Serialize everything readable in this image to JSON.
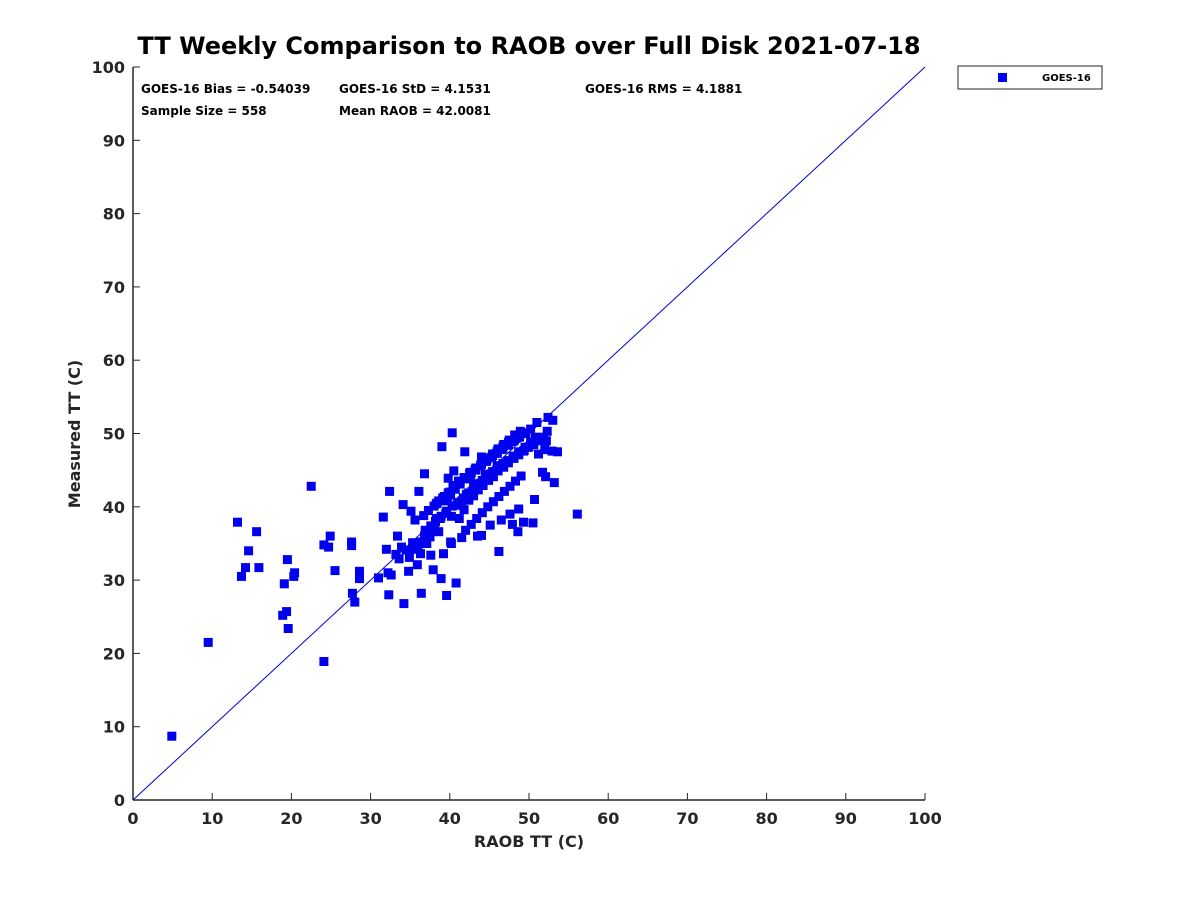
{
  "chart_data": {
    "type": "scatter",
    "title": "TT Weekly Comparison to RAOB over Full Disk 2021-07-18",
    "xlabel": "RAOB TT (C)",
    "ylabel": "Measured TT (C)",
    "xlim": [
      0,
      100
    ],
    "ylim": [
      0,
      100
    ],
    "xticks": [
      "0",
      "10",
      "20",
      "30",
      "40",
      "50",
      "60",
      "70",
      "80",
      "90",
      "100"
    ],
    "yticks": [
      "0",
      "10",
      "20",
      "30",
      "40",
      "50",
      "60",
      "70",
      "80",
      "90",
      "100"
    ],
    "grid": false,
    "legend_position": "top-right",
    "reference_line": {
      "from": [
        0,
        0
      ],
      "to": [
        100,
        100
      ],
      "color": "#0000cc"
    },
    "stats": {
      "bias": "GOES-16 Bias = -0.54039",
      "std": "GOES-16 StD = 4.1531",
      "rms": "GOES-16 RMS = 4.1881",
      "sample": "Sample Size = 558",
      "mean": "Mean RAOB = 42.0081"
    },
    "series": [
      {
        "name": "GOES-16",
        "color": "#0000ee",
        "marker": "square",
        "x": [
          4.9,
          9.5,
          13.2,
          13.7,
          14.2,
          14.6,
          15.6,
          15.9,
          18.9,
          19.1,
          19.4,
          19.6,
          19.5,
          20.3,
          20.4,
          22.5,
          24.1,
          24.1,
          24.7,
          24.9,
          25.5,
          27.6,
          27.6,
          27.7,
          28.0,
          28.6,
          28.6,
          31.0,
          31.6,
          32.0,
          32.2,
          32.3,
          32.4,
          32.6,
          33.2,
          33.4,
          33.6,
          33.9,
          34.1,
          34.2,
          34.5,
          34.8,
          35.1,
          35.3,
          35.6,
          35.9,
          36.1,
          36.4,
          36.8,
          37.1,
          37.4,
          37.9,
          38.3,
          38.6,
          38.9,
          39.2,
          39.6,
          40.1,
          40.3,
          40.8,
          36.0,
          36.4,
          36.9,
          37.5,
          38.1,
          38.8,
          39.5,
          40.2,
          40.9,
          41.5,
          42.1,
          42.8,
          43.5,
          44.1,
          44.8,
          45.4,
          46.1,
          46.7,
          47.4,
          48.0,
          48.7,
          49.3,
          49.9,
          50.6,
          51.2,
          51.8,
          52.3,
          52.9,
          53.6,
          56.1,
          41.2,
          41.8,
          42.4,
          43.0,
          43.6,
          44.2,
          44.9,
          45.5,
          46.1,
          46.8,
          47.4,
          48.1,
          48.7,
          49.4,
          50.0,
          50.8,
          39.7,
          40.1,
          40.7,
          41.3,
          42.0,
          42.6,
          43.3,
          43.9,
          44.6,
          45.2,
          45.9,
          46.5,
          47.2,
          47.8,
          48.5,
          49.1,
          37.6,
          38.2,
          38.9,
          39.6,
          40.3,
          41.0,
          41.7,
          42.4,
          43.1,
          43.8,
          44.5,
          45.2,
          45.9,
          46.6,
          47.3,
          48.0,
          48.7,
          49.5,
          50.2,
          51.0,
          38.4,
          39.1,
          39.8,
          40.5,
          41.2,
          41.9,
          42.6,
          43.3,
          44.0,
          44.7,
          45.4,
          46.1,
          46.8,
          47.5,
          48.2,
          48.9,
          49.6,
          42.0,
          42.7,
          43.4,
          44.1,
          44.8,
          45.5,
          46.2,
          46.9,
          47.6,
          48.3,
          49.0,
          36.7,
          37.3,
          38.0,
          38.6,
          39.3,
          40.0,
          40.6,
          41.3,
          42.0,
          42.7,
          43.3,
          44.0,
          44.7,
          45.4,
          46.0,
          46.7,
          47.4,
          40.4,
          41.1,
          41.8,
          42.5,
          43.2,
          43.9,
          44.6,
          45.3,
          46.0,
          46.7,
          47.4,
          48.1,
          48.8,
          49.5,
          50.2,
          40.2,
          41.5,
          44.0,
          45.1,
          46.5,
          47.6,
          48.7,
          52.4,
          53.0,
          51.7,
          50.7,
          52.1,
          41.9,
          39.0,
          36.8,
          43.5,
          46.2,
          47.9,
          48.6,
          49.3,
          52.2,
          53.2,
          50.5,
          51.2,
          52.0,
          40.5,
          39.8,
          43.0,
          44.5,
          46.0,
          44.0,
          42.4,
          38.3,
          37.6,
          36.3,
          35.5,
          34.9
        ],
        "y": [
          8.7,
          21.5,
          37.9,
          30.5,
          31.7,
          34.0,
          36.6,
          31.7,
          25.2,
          29.5,
          25.7,
          23.4,
          32.8,
          30.5,
          31.0,
          42.8,
          18.9,
          34.8,
          34.5,
          36.0,
          31.3,
          35.2,
          34.7,
          28.2,
          27.0,
          30.2,
          31.2,
          30.3,
          38.6,
          34.2,
          31.0,
          28.0,
          42.1,
          30.7,
          33.5,
          36.0,
          32.9,
          34.5,
          40.3,
          26.8,
          34.1,
          31.2,
          39.4,
          35.1,
          38.2,
          32.1,
          42.1,
          28.2,
          36.0,
          35.0,
          36.2,
          31.4,
          38.4,
          36.6,
          30.2,
          33.6,
          27.9,
          35.2,
          50.1,
          29.6,
          34.5,
          35.2,
          36.8,
          35.9,
          37.0,
          38.4,
          39.1,
          38.7,
          40.2,
          40.8,
          41.7,
          42.1,
          43.0,
          43.6,
          44.2,
          44.8,
          45.3,
          45.9,
          46.3,
          46.9,
          47.2,
          47.6,
          48.1,
          48.5,
          49.0,
          49.5,
          50.3,
          47.6,
          47.5,
          39.0,
          38.4,
          39.6,
          40.9,
          41.5,
          42.3,
          42.9,
          43.6,
          44.1,
          44.9,
          45.4,
          46.0,
          46.6,
          47.1,
          47.7,
          48.2,
          49.5,
          40.8,
          41.6,
          42.4,
          43.1,
          43.8,
          44.3,
          45.0,
          45.6,
          46.2,
          46.7,
          47.3,
          47.8,
          48.4,
          48.9,
          49.4,
          50.0,
          37.4,
          38.0,
          38.7,
          39.4,
          40.1,
          40.6,
          41.2,
          41.9,
          42.5,
          43.2,
          43.8,
          44.5,
          45.0,
          45.6,
          46.2,
          46.9,
          47.5,
          48.1,
          48.8,
          51.5,
          40.5,
          41.2,
          41.9,
          42.6,
          43.4,
          44.0,
          44.7,
          45.3,
          46.0,
          46.6,
          47.2,
          47.9,
          48.5,
          49.1,
          49.8,
          50.3,
          50.0,
          36.8,
          37.6,
          38.4,
          39.2,
          40.0,
          40.7,
          41.4,
          42.1,
          42.8,
          43.5,
          44.2,
          38.8,
          39.5,
          40.1,
          40.8,
          41.4,
          42.0,
          42.7,
          43.3,
          43.9,
          44.6,
          45.2,
          45.8,
          46.4,
          47.0,
          47.6,
          48.2,
          48.8,
          42.9,
          43.5,
          44.0,
          44.6,
          45.1,
          45.7,
          46.2,
          46.8,
          47.3,
          47.9,
          48.4,
          49.0,
          49.5,
          50.1,
          50.6,
          35.0,
          35.8,
          36.1,
          37.5,
          38.2,
          39.0,
          39.7,
          52.2,
          51.8,
          44.7,
          41.0,
          44.1,
          47.5,
          48.2,
          44.5,
          36.0,
          33.9,
          37.6,
          36.6,
          37.9,
          49.0,
          43.3,
          37.8,
          47.2,
          47.8,
          44.9,
          43.9,
          43.1,
          44.4,
          45.6,
          46.8,
          41.1,
          40.4,
          33.4,
          33.6,
          34.2,
          33.1
        ]
      }
    ]
  }
}
